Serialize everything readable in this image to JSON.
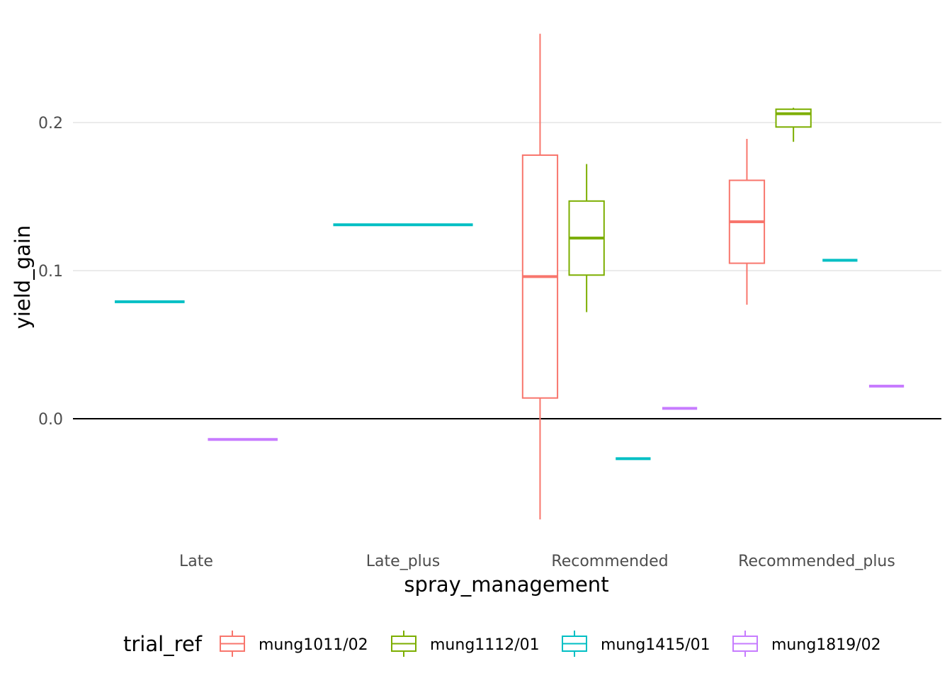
{
  "chart_data": {
    "type": "boxplot",
    "xlabel": "spray_management",
    "ylabel": "yield_gain",
    "categories": [
      "Late",
      "Late_plus",
      "Recommended",
      "Recommended_plus"
    ],
    "y_ticks": [
      0.0,
      0.1,
      0.2
    ],
    "y_tick_labels": [
      "0.0",
      "0.1",
      "0.2"
    ],
    "ylim": [
      -0.085,
      0.265
    ],
    "reference_line_y": 0.0,
    "grid": "major y only",
    "legend": {
      "title": "trial_ref",
      "position": "bottom",
      "entries": [
        {
          "name": "mung1011/02",
          "color": "#F8766D"
        },
        {
          "name": "mung1112/01",
          "color": "#7CAE00"
        },
        {
          "name": "mung1415/01",
          "color": "#00BFC4"
        },
        {
          "name": "mung1819/02",
          "color": "#C77CFF"
        }
      ]
    },
    "series": [
      {
        "name": "mung1011/02",
        "color": "#F8766D",
        "boxes": [
          {
            "category": "Recommended",
            "min": -0.068,
            "q1": 0.014,
            "median": 0.096,
            "q3": 0.178,
            "max": 0.26
          },
          {
            "category": "Recommended_plus",
            "min": 0.077,
            "q1": 0.105,
            "median": 0.133,
            "q3": 0.161,
            "max": 0.189
          }
        ]
      },
      {
        "name": "mung1112/01",
        "color": "#7CAE00",
        "boxes": [
          {
            "category": "Recommended",
            "min": 0.072,
            "q1": 0.097,
            "median": 0.122,
            "q3": 0.147,
            "max": 0.172
          },
          {
            "category": "Recommended_plus",
            "min": 0.187,
            "q1": 0.197,
            "median": 0.206,
            "q3": 0.209,
            "max": 0.21
          }
        ]
      },
      {
        "name": "mung1415/01",
        "color": "#00BFC4",
        "boxes": [
          {
            "category": "Late",
            "min": 0.079,
            "q1": 0.079,
            "median": 0.079,
            "q3": 0.079,
            "max": 0.079
          },
          {
            "category": "Late_plus",
            "min": 0.131,
            "q1": 0.131,
            "median": 0.131,
            "q3": 0.131,
            "max": 0.131
          },
          {
            "category": "Recommended",
            "min": -0.027,
            "q1": -0.027,
            "median": -0.027,
            "q3": -0.027,
            "max": -0.027
          },
          {
            "category": "Recommended_plus",
            "min": 0.107,
            "q1": 0.107,
            "median": 0.107,
            "q3": 0.107,
            "max": 0.107
          }
        ]
      },
      {
        "name": "mung1819/02",
        "color": "#C77CFF",
        "boxes": [
          {
            "category": "Late",
            "min": -0.014,
            "q1": -0.014,
            "median": -0.014,
            "q3": -0.014,
            "max": -0.014
          },
          {
            "category": "Recommended",
            "min": 0.007,
            "q1": 0.007,
            "median": 0.007,
            "q3": 0.007,
            "max": 0.007
          },
          {
            "category": "Recommended_plus",
            "min": 0.022,
            "q1": 0.022,
            "median": 0.022,
            "q3": 0.022,
            "max": 0.022
          }
        ]
      }
    ]
  }
}
